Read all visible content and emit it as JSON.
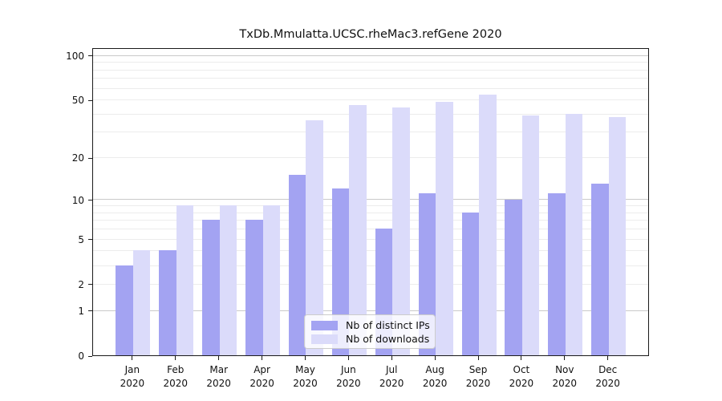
{
  "chart_data": {
    "type": "bar",
    "title": "TxDb.Mmulatta.UCSC.rheMac3.refGene 2020",
    "categories": [
      "Jan",
      "Feb",
      "Mar",
      "Apr",
      "May",
      "Jun",
      "Jul",
      "Aug",
      "Sep",
      "Oct",
      "Nov",
      "Dec"
    ],
    "year": "2020",
    "series": [
      {
        "name": "Nb of distinct IPs",
        "color": "#a3a3f2",
        "values": [
          3,
          4,
          7,
          7,
          15,
          12,
          6,
          11,
          8,
          10,
          11,
          13
        ]
      },
      {
        "name": "Nb of downloads",
        "color": "#dbdbfa",
        "values": [
          4,
          9,
          9,
          9,
          36,
          46,
          44,
          48,
          54,
          39,
          40,
          38
        ]
      }
    ],
    "yscale": "log1p",
    "ylim": [
      0,
      113
    ],
    "yticks": [
      0,
      1,
      2,
      5,
      10,
      20,
      50,
      100
    ],
    "minor_gridlines": [
      3,
      4,
      6,
      7,
      8,
      9,
      30,
      40,
      60,
      70,
      80,
      90
    ],
    "grid": "horizontal",
    "grid_major_color": "#c9c9c9",
    "grid_minor_color": "#ececec",
    "legend_position": "inside-bottom-center",
    "xlabel": "",
    "ylabel": ""
  }
}
